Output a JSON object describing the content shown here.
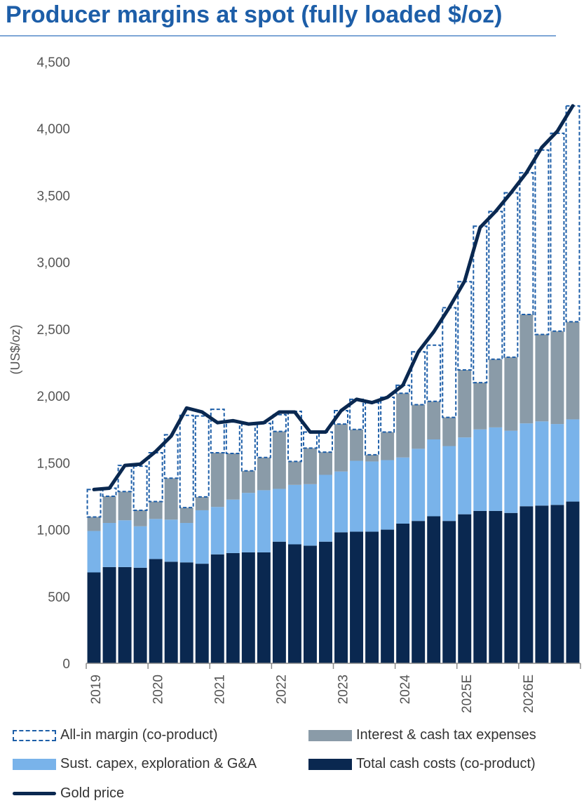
{
  "chart_data": {
    "type": "bar",
    "title": "Producer margins at spot (fully loaded $/oz)",
    "ylabel": "(US$/oz)",
    "xlabel": "",
    "ylim": [
      0,
      4500
    ],
    "yticks": [
      0,
      500,
      1000,
      1500,
      2000,
      2500,
      3000,
      3500,
      4000,
      4500
    ],
    "ytick_labels": [
      "0",
      "500",
      "1,000",
      "1,500",
      "2,000",
      "2,500",
      "3,000",
      "3,500",
      "4,000",
      "4,500"
    ],
    "year_labels": [
      "2019",
      "2020",
      "2021",
      "2022",
      "2023",
      "2024",
      "2025E",
      "2026E"
    ],
    "categories": [
      "2019Q1",
      "2019Q2",
      "2019Q3",
      "2019Q4",
      "2020Q1",
      "2020Q2",
      "2020Q3",
      "2020Q4",
      "2021Q1",
      "2021Q2",
      "2021Q3",
      "2021Q4",
      "2022Q1",
      "2022Q2",
      "2022Q3",
      "2022Q4",
      "2023Q1",
      "2023Q2",
      "2023Q3",
      "2023Q4",
      "2024Q1",
      "2024Q2",
      "2024Q3",
      "2024Q4",
      "2025Q1",
      "2025Q2",
      "2025Q3",
      "2025Q4",
      "2026Q1",
      "2026Q2",
      "2026Q3",
      "2026Q4"
    ],
    "series": [
      {
        "name": "Total cash costs (co-product)",
        "color": "#0a2850",
        "values": [
          680,
          720,
          720,
          715,
          780,
          760,
          755,
          745,
          815,
          825,
          830,
          830,
          910,
          890,
          880,
          910,
          980,
          985,
          985,
          1000,
          1045,
          1065,
          1100,
          1065,
          1115,
          1140,
          1140,
          1125,
          1175,
          1180,
          1185,
          1210
        ]
      },
      {
        "name": "Sust. capex, exploration & G&A",
        "color": "#79b3ea",
        "values": [
          310,
          330,
          350,
          310,
          300,
          315,
          295,
          400,
          355,
          400,
          445,
          465,
          395,
          445,
          460,
          500,
          455,
          530,
          525,
          520,
          495,
          540,
          575,
          560,
          575,
          610,
          625,
          615,
          620,
          630,
          605,
          615
        ]
      },
      {
        "name": "Interest & cash tax expenses",
        "color": "#8a9ba8",
        "values": [
          105,
          200,
          215,
          120,
          130,
          310,
          115,
          100,
          405,
          345,
          165,
          245,
          430,
          175,
          270,
          170,
          355,
          235,
          50,
          210,
          480,
          330,
          285,
          215,
          505,
          350,
          510,
          550,
          815,
          650,
          695,
          730
        ]
      },
      {
        "name": "All-in margin (co-product)",
        "color": "#1d5ea8",
        "values": [
          205,
          60,
          195,
          330,
          365,
          325,
          690,
          605,
          325,
          235,
          350,
          255,
          125,
          375,
          120,
          150,
          100,
          225,
          390,
          260,
          60,
          395,
          420,
          820,
          660,
          1170,
          1105,
          1230,
          1060,
          1380,
          1480,
          1615
        ]
      }
    ],
    "gold_price": {
      "name": "Gold price",
      "color": "#0a2850",
      "values": [
        1300,
        1310,
        1480,
        1490,
        1585,
        1700,
        1910,
        1880,
        1800,
        1815,
        1790,
        1800,
        1880,
        1880,
        1730,
        1730,
        1890,
        1975,
        1950,
        1990,
        2080,
        2330,
        2480,
        2660,
        2860,
        3260,
        3380,
        3520,
        3670,
        3860,
        3980,
        4170
      ]
    },
    "legend": {
      "margin": "All-in margin (co-product)",
      "interest": "Interest & cash tax expenses",
      "capex": "Sust. capex, exploration & G&A",
      "cash": "Total cash costs (co-product)",
      "gold": "Gold price"
    }
  }
}
